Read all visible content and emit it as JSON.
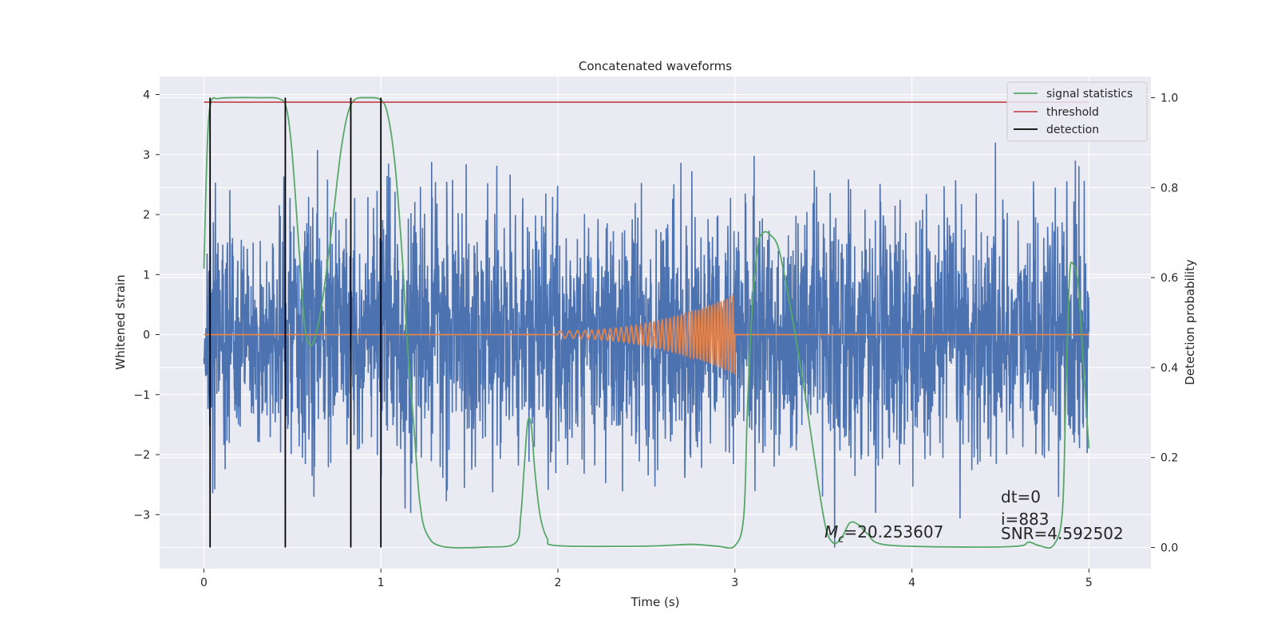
{
  "chart_data": {
    "type": "line",
    "title": "Concatenated waveforms",
    "xlabel": "Time (s)",
    "ylabel": "Whitened strain",
    "y2label": "Detection probability",
    "xlim": [
      -0.25,
      5.35
    ],
    "ylim": [
      -3.9,
      4.3
    ],
    "y2lim": [
      -0.047,
      1.047
    ],
    "xticks": [
      0,
      1,
      2,
      3,
      4,
      5
    ],
    "xtick_labels": [
      "0",
      "1",
      "2",
      "3",
      "4",
      "5"
    ],
    "yticks": [
      -3,
      -2,
      -1,
      0,
      1,
      2,
      3,
      4
    ],
    "ytick_labels": [
      "−3",
      "−2",
      "−1",
      "0",
      "1",
      "2",
      "3",
      "4"
    ],
    "y2ticks": [
      0.0,
      0.2,
      0.4,
      0.6,
      0.8,
      1.0
    ],
    "y2tick_labels": [
      "0.0",
      "0.2",
      "0.4",
      "0.6",
      "0.8",
      "1.0"
    ],
    "grid": true,
    "legend_position": "top-right",
    "colors": {
      "noise": "#4c72b0",
      "waveform": "#dd8452",
      "signal_statistics": "#55a868",
      "threshold": "#c44e52",
      "detection": "#000000",
      "axes_bg": "#eaeaf2",
      "grid": "#ffffff"
    },
    "series": [
      {
        "name": "",
        "axis": "left",
        "kind": "noise",
        "x_range": [
          0,
          5
        ],
        "typical_amplitude": 1.2,
        "max": 3.9,
        "min": -3.55
      },
      {
        "name": "",
        "axis": "left",
        "kind": "chirp",
        "x_range": [
          2.0,
          3.0
        ],
        "y_outside": 0,
        "amplitude_start": 0.06,
        "amplitude_end": 0.65
      },
      {
        "name": "signal statistics",
        "axis": "right",
        "x": [
          0.0,
          0.02,
          0.04,
          0.08,
          0.15,
          0.3,
          0.43,
          0.47,
          0.5,
          0.54,
          0.57,
          0.6,
          0.63,
          0.67,
          0.72,
          0.77,
          0.81,
          0.85,
          0.92,
          1.0,
          1.04,
          1.08,
          1.12,
          1.15,
          1.19,
          1.22,
          1.26,
          1.35,
          1.6,
          1.76,
          1.79,
          1.81,
          1.83,
          1.85,
          1.87,
          1.9,
          1.94,
          2.0,
          2.5,
          2.75,
          2.9,
          3.0,
          3.05,
          3.07,
          3.1,
          3.13,
          3.16,
          3.2,
          3.25,
          3.32,
          3.4,
          3.5,
          3.55,
          3.6,
          3.65,
          3.7,
          3.75,
          3.85,
          4.3,
          4.6,
          4.66,
          4.72,
          4.8,
          4.85,
          4.87,
          4.89,
          4.91,
          4.94,
          4.97,
          5.0
        ],
        "values": [
          0.62,
          0.9,
          0.99,
          0.998,
          1.0,
          1.0,
          0.997,
          0.97,
          0.87,
          0.65,
          0.49,
          0.45,
          0.47,
          0.55,
          0.7,
          0.87,
          0.96,
          0.995,
          1.0,
          0.995,
          0.96,
          0.85,
          0.65,
          0.45,
          0.25,
          0.1,
          0.03,
          0.002,
          0.001,
          0.01,
          0.07,
          0.18,
          0.28,
          0.27,
          0.17,
          0.07,
          0.02,
          0.004,
          0.003,
          0.007,
          0.003,
          0.004,
          0.07,
          0.3,
          0.55,
          0.67,
          0.7,
          0.695,
          0.66,
          0.52,
          0.33,
          0.07,
          0.012,
          0.02,
          0.055,
          0.05,
          0.03,
          0.006,
          0.001,
          0.003,
          0.012,
          0.004,
          0.005,
          0.08,
          0.35,
          0.6,
          0.63,
          0.58,
          0.4,
          0.22
        ]
      },
      {
        "name": "threshold",
        "axis": "right",
        "x": [
          0,
          5
        ],
        "values": [
          0.99,
          0.99
        ]
      },
      {
        "name": "detection",
        "axis": "right",
        "kind": "vlines",
        "x": [
          0.035,
          0.46,
          0.83,
          1.0
        ],
        "ymin": 0.0,
        "ymax": 1.0
      }
    ],
    "annotations": {
      "mc_symbol": "M",
      "mc_subscript": "c",
      "mc_value": "=20.253607",
      "dt": "dt=0",
      "i": "i=883",
      "snr": "SNR=4.592502"
    }
  }
}
